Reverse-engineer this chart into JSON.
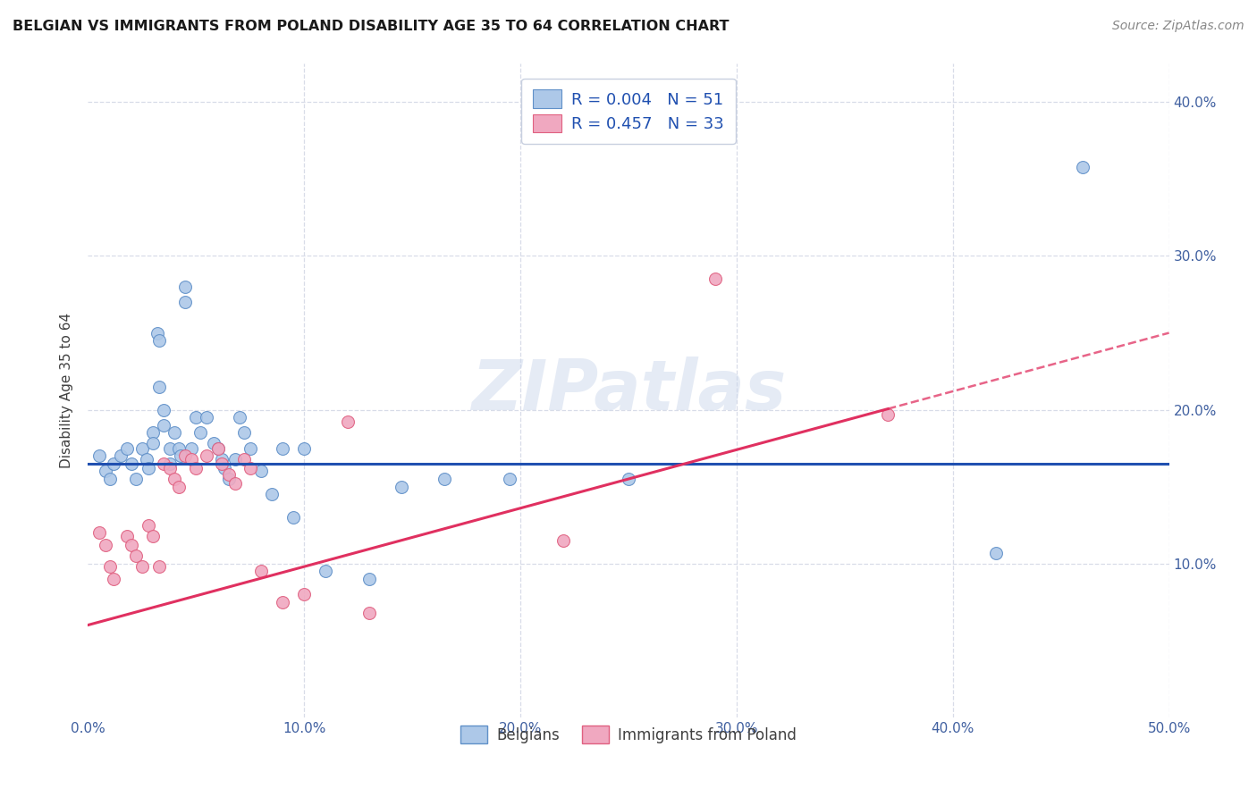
{
  "title": "BELGIAN VS IMMIGRANTS FROM POLAND DISABILITY AGE 35 TO 64 CORRELATION CHART",
  "source": "Source: ZipAtlas.com",
  "ylabel": "Disability Age 35 to 64",
  "xlim": [
    0.0,
    0.5
  ],
  "ylim": [
    0.0,
    0.425
  ],
  "xticks": [
    0.0,
    0.1,
    0.2,
    0.3,
    0.4,
    0.5
  ],
  "yticks": [
    0.1,
    0.2,
    0.3,
    0.4
  ],
  "xticklabels": [
    "0.0%",
    "10.0%",
    "20.0%",
    "30.0%",
    "40.0%",
    "50.0%"
  ],
  "yticklabels": [
    "10.0%",
    "20.0%",
    "30.0%",
    "40.0%"
  ],
  "legend_R_blue": "0.004",
  "legend_N_blue": "51",
  "legend_R_pink": "0.457",
  "legend_N_pink": "33",
  "blue_scatter_color": "#adc8e8",
  "pink_scatter_color": "#f0a8c0",
  "blue_edge_color": "#6090c8",
  "pink_edge_color": "#e06080",
  "blue_line_color": "#2050b0",
  "pink_line_color": "#e03060",
  "grid_color": "#d8dce8",
  "watermark_color": "#ccd8ec",
  "watermark": "ZIPatlas",
  "blue_trend_y_intercept": 0.165,
  "blue_trend_slope": 0.0,
  "pink_trend_y_intercept": 0.06,
  "pink_trend_slope": 0.38,
  "belgians_x": [
    0.005,
    0.008,
    0.01,
    0.012,
    0.015,
    0.018,
    0.02,
    0.022,
    0.025,
    0.027,
    0.028,
    0.03,
    0.03,
    0.032,
    0.033,
    0.033,
    0.035,
    0.035,
    0.038,
    0.038,
    0.04,
    0.042,
    0.043,
    0.045,
    0.045,
    0.048,
    0.05,
    0.052,
    0.055,
    0.058,
    0.06,
    0.062,
    0.063,
    0.065,
    0.068,
    0.07,
    0.072,
    0.075,
    0.08,
    0.085,
    0.09,
    0.095,
    0.1,
    0.11,
    0.13,
    0.145,
    0.165,
    0.195,
    0.25,
    0.42,
    0.46
  ],
  "belgians_y": [
    0.17,
    0.16,
    0.155,
    0.165,
    0.17,
    0.175,
    0.165,
    0.155,
    0.175,
    0.168,
    0.162,
    0.185,
    0.178,
    0.25,
    0.245,
    0.215,
    0.2,
    0.19,
    0.175,
    0.165,
    0.185,
    0.175,
    0.17,
    0.28,
    0.27,
    0.175,
    0.195,
    0.185,
    0.195,
    0.178,
    0.175,
    0.168,
    0.162,
    0.155,
    0.168,
    0.195,
    0.185,
    0.175,
    0.16,
    0.145,
    0.175,
    0.13,
    0.175,
    0.095,
    0.09,
    0.15,
    0.155,
    0.155,
    0.155,
    0.107,
    0.358
  ],
  "poland_x": [
    0.005,
    0.008,
    0.01,
    0.012,
    0.018,
    0.02,
    0.022,
    0.025,
    0.028,
    0.03,
    0.033,
    0.035,
    0.038,
    0.04,
    0.042,
    0.045,
    0.048,
    0.05,
    0.055,
    0.06,
    0.062,
    0.065,
    0.068,
    0.072,
    0.075,
    0.08,
    0.09,
    0.1,
    0.12,
    0.13,
    0.22,
    0.29,
    0.37
  ],
  "poland_y": [
    0.12,
    0.112,
    0.098,
    0.09,
    0.118,
    0.112,
    0.105,
    0.098,
    0.125,
    0.118,
    0.098,
    0.165,
    0.162,
    0.155,
    0.15,
    0.17,
    0.168,
    0.162,
    0.17,
    0.175,
    0.165,
    0.158,
    0.152,
    0.168,
    0.162,
    0.095,
    0.075,
    0.08,
    0.192,
    0.068,
    0.115,
    0.285,
    0.197
  ]
}
